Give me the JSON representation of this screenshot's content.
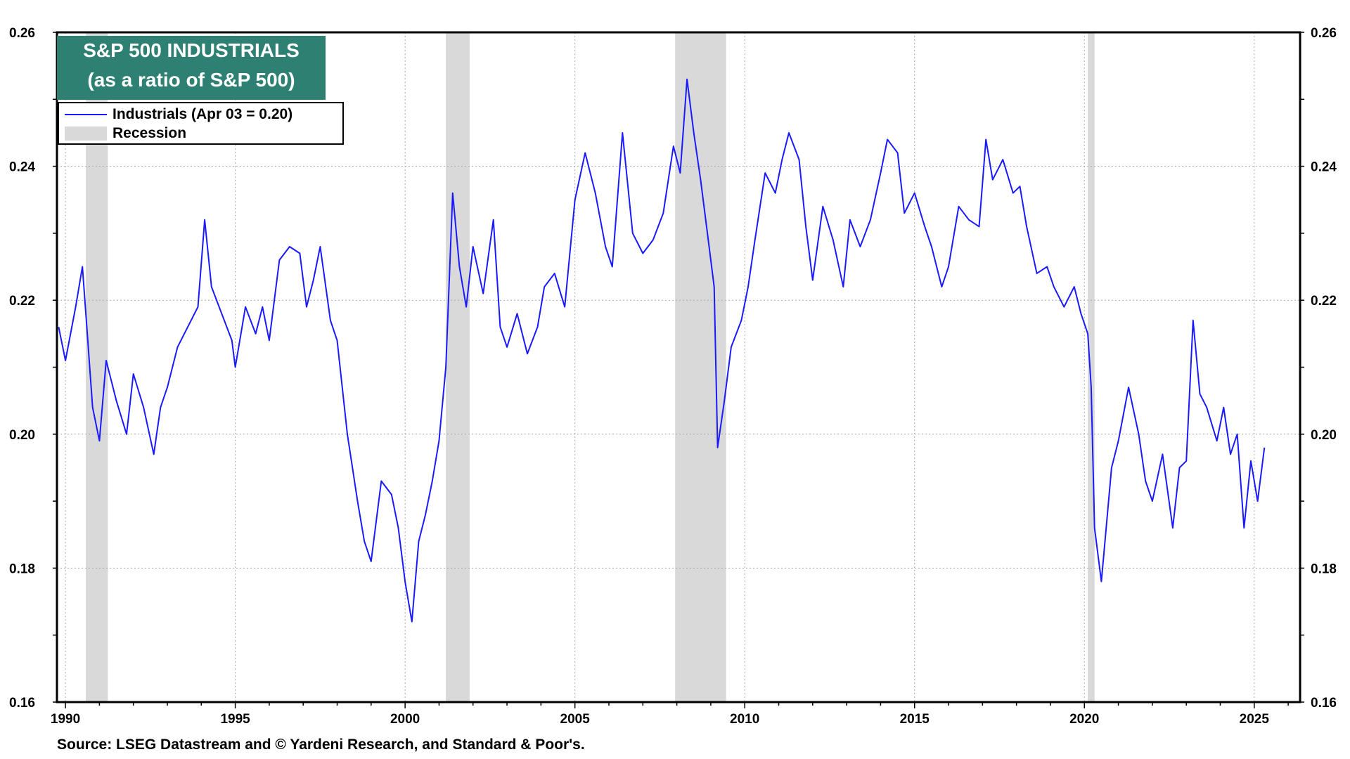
{
  "chart_data": {
    "type": "line",
    "title": "S&P 500 INDUSTRIALS",
    "subtitle": "(as a ratio of S&P 500)",
    "xlabel": "",
    "ylabel": "",
    "xlim": [
      1989.75,
      2026.35
    ],
    "ylim": [
      0.16,
      0.26
    ],
    "grid": true,
    "legend_position": "top-left",
    "x_ticks": [
      1990,
      1995,
      2000,
      2005,
      2010,
      2015,
      2020,
      2025
    ],
    "x_tick_labels": [
      "1990",
      "1995",
      "2000",
      "2005",
      "2010",
      "2015",
      "2020",
      "2025"
    ],
    "y_ticks": [
      0.16,
      0.18,
      0.2,
      0.22,
      0.24,
      0.26
    ],
    "y_tick_labels": [
      "0.16",
      "0.18",
      "0.20",
      "0.22",
      "0.24",
      "0.26"
    ],
    "legend": {
      "series_label": "Industrials (Apr 03 = 0.20)",
      "recession_label": "Recession"
    },
    "series": [
      {
        "name": "Industrials (Apr 03 = 0.20)",
        "color": "#1a1aff",
        "x": [
          1989.8,
          1990.0,
          1990.3,
          1990.5,
          1990.6,
          1990.8,
          1991.0,
          1991.2,
          1991.5,
          1991.8,
          1992.0,
          1992.3,
          1992.6,
          1992.8,
          1993.0,
          1993.3,
          1993.6,
          1993.9,
          1994.1,
          1994.3,
          1994.6,
          1994.9,
          1995.0,
          1995.3,
          1995.6,
          1995.8,
          1996.0,
          1996.3,
          1996.6,
          1996.9,
          1997.1,
          1997.3,
          1997.5,
          1997.8,
          1998.0,
          1998.3,
          1998.6,
          1998.8,
          1999.0,
          1999.3,
          1999.6,
          1999.8,
          2000.0,
          2000.2,
          2000.4,
          2000.6,
          2000.8,
          2001.0,
          2001.2,
          2001.4,
          2001.6,
          2001.8,
          2002.0,
          2002.3,
          2002.6,
          2002.8,
          2003.0,
          2003.3,
          2003.6,
          2003.9,
          2004.1,
          2004.4,
          2004.7,
          2005.0,
          2005.3,
          2005.6,
          2005.9,
          2006.1,
          2006.4,
          2006.7,
          2007.0,
          2007.3,
          2007.6,
          2007.9,
          2008.1,
          2008.3,
          2008.5,
          2008.7,
          2008.9,
          2009.1,
          2009.2,
          2009.4,
          2009.6,
          2009.9,
          2010.1,
          2010.3,
          2010.6,
          2010.9,
          2011.1,
          2011.3,
          2011.6,
          2011.8,
          2012.0,
          2012.3,
          2012.6,
          2012.9,
          2013.1,
          2013.4,
          2013.7,
          2014.0,
          2014.2,
          2014.5,
          2014.7,
          2015.0,
          2015.3,
          2015.5,
          2015.8,
          2016.0,
          2016.3,
          2016.6,
          2016.9,
          2017.1,
          2017.3,
          2017.6,
          2017.9,
          2018.1,
          2018.3,
          2018.6,
          2018.9,
          2019.1,
          2019.4,
          2019.7,
          2019.9,
          2020.1,
          2020.2,
          2020.3,
          2020.5,
          2020.8,
          2021.0,
          2021.3,
          2021.6,
          2021.8,
          2022.0,
          2022.3,
          2022.6,
          2022.8,
          2023.0,
          2023.2,
          2023.4,
          2023.6,
          2023.9,
          2024.1,
          2024.3,
          2024.5,
          2024.7,
          2024.9,
          2025.1,
          2025.3
        ],
        "values": [
          0.216,
          0.211,
          0.219,
          0.225,
          0.218,
          0.204,
          0.199,
          0.211,
          0.205,
          0.2,
          0.209,
          0.204,
          0.197,
          0.204,
          0.207,
          0.213,
          0.216,
          0.219,
          0.232,
          0.222,
          0.218,
          0.214,
          0.21,
          0.219,
          0.215,
          0.219,
          0.214,
          0.226,
          0.228,
          0.227,
          0.219,
          0.223,
          0.228,
          0.217,
          0.214,
          0.2,
          0.19,
          0.184,
          0.181,
          0.193,
          0.191,
          0.186,
          0.178,
          0.172,
          0.184,
          0.188,
          0.193,
          0.199,
          0.21,
          0.236,
          0.225,
          0.219,
          0.228,
          0.221,
          0.232,
          0.216,
          0.213,
          0.218,
          0.212,
          0.216,
          0.222,
          0.224,
          0.219,
          0.235,
          0.242,
          0.236,
          0.228,
          0.225,
          0.245,
          0.23,
          0.227,
          0.229,
          0.233,
          0.243,
          0.239,
          0.253,
          0.245,
          0.238,
          0.23,
          0.222,
          0.198,
          0.205,
          0.213,
          0.217,
          0.222,
          0.229,
          0.239,
          0.236,
          0.241,
          0.245,
          0.241,
          0.231,
          0.223,
          0.234,
          0.229,
          0.222,
          0.232,
          0.228,
          0.232,
          0.239,
          0.244,
          0.242,
          0.233,
          0.236,
          0.231,
          0.228,
          0.222,
          0.225,
          0.234,
          0.232,
          0.231,
          0.244,
          0.238,
          0.241,
          0.236,
          0.237,
          0.231,
          0.224,
          0.225,
          0.222,
          0.219,
          0.222,
          0.218,
          0.215,
          0.207,
          0.186,
          0.178,
          0.195,
          0.199,
          0.207,
          0.2,
          0.193,
          0.19,
          0.197,
          0.186,
          0.195,
          0.196,
          0.217,
          0.206,
          0.204,
          0.199,
          0.204,
          0.197,
          0.2,
          0.186,
          0.196,
          0.19,
          0.198
        ]
      }
    ],
    "recessions": [
      [
        1990.6,
        1991.25
      ],
      [
        2001.2,
        2001.9
      ],
      [
        2007.95,
        2009.45
      ],
      [
        2020.1,
        2020.3
      ]
    ]
  },
  "header": {
    "title": "S&P 500 INDUSTRIALS",
    "subtitle": "(as a ratio of S&P 500)"
  },
  "footer": {
    "source": "Source: LSEG Datastream and © Yardeni Research, and Standard & Poor's."
  },
  "colors": {
    "line": "#1a1aff",
    "recession": "#d9d9d9",
    "title_bg": "#2e8073",
    "title_text": "#ffffff",
    "grid": "#aaaaaa"
  }
}
